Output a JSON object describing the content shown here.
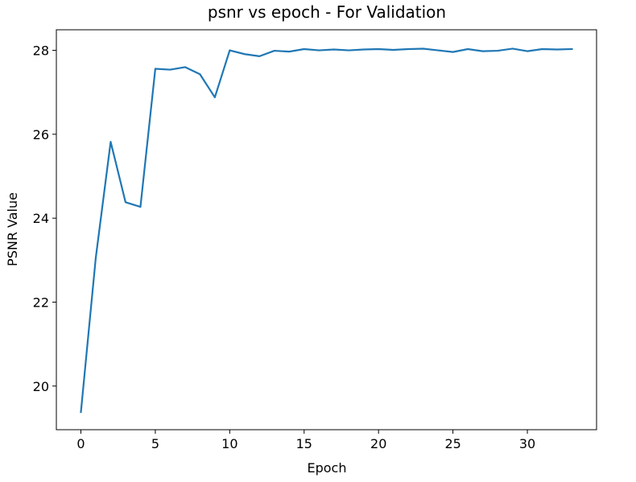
{
  "chart_data": {
    "type": "line",
    "title": "psnr vs epoch - For Validation",
    "xlabel": "Epoch",
    "ylabel": "PSNR Value",
    "xlim": [
      -1.65,
      34.65
    ],
    "ylim": [
      18.96,
      28.49
    ],
    "xticks": [
      0,
      5,
      10,
      15,
      20,
      25,
      30
    ],
    "yticks": [
      20,
      22,
      24,
      26,
      28
    ],
    "grid": false,
    "series": [
      {
        "color": "#1f77b4",
        "x": [
          0,
          1,
          2,
          3,
          4,
          5,
          6,
          7,
          8,
          9,
          10,
          11,
          12,
          13,
          14,
          15,
          16,
          17,
          18,
          19,
          20,
          21,
          22,
          23,
          24,
          25,
          26,
          27,
          28,
          29,
          30,
          31,
          32,
          33
        ],
        "y": [
          19.38,
          23.06,
          25.82,
          24.38,
          24.27,
          27.56,
          27.54,
          27.6,
          27.43,
          26.88,
          28.0,
          27.91,
          27.86,
          27.99,
          27.97,
          28.03,
          28.0,
          28.02,
          28.0,
          28.02,
          28.03,
          28.01,
          28.03,
          28.04,
          28.0,
          27.96,
          28.03,
          27.98,
          27.99,
          28.04,
          27.98,
          28.03,
          28.02,
          28.03
        ]
      }
    ]
  }
}
